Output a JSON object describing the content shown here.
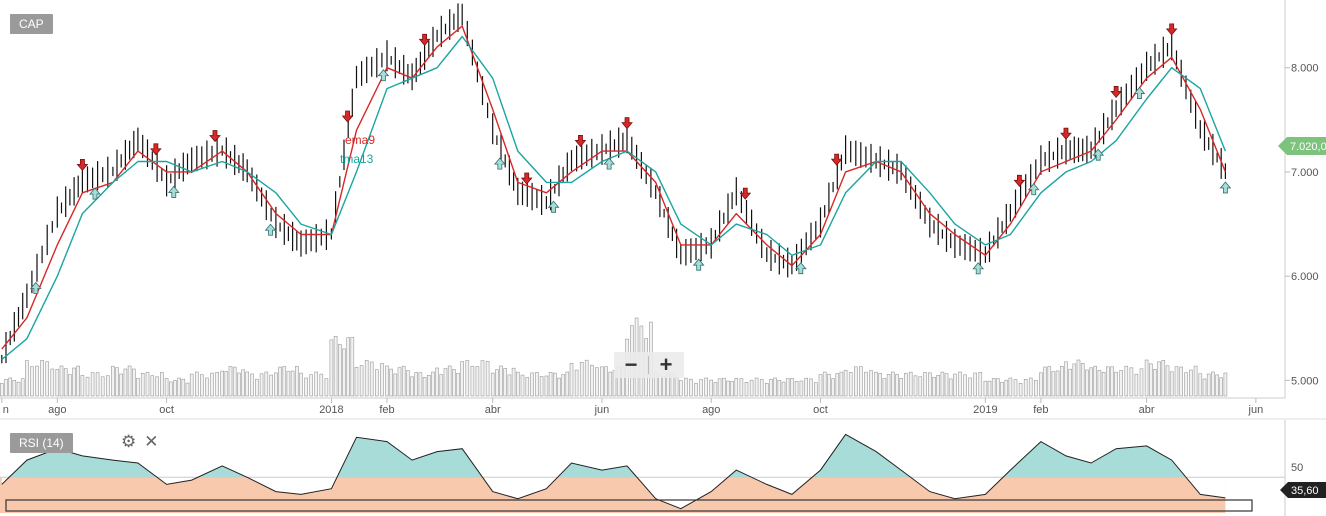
{
  "symbol": "CAP",
  "indicators": [
    {
      "name": "ema9",
      "color": "#d62828"
    },
    {
      "name": "tma13",
      "color": "#1aa5a0"
    }
  ],
  "price_axis_labels": [
    "8.000",
    "7.000",
    "6.000",
    "5.000"
  ],
  "current_price_label": "7.020,0",
  "time_axis_labels": [
    "n",
    "ago",
    "oct",
    "2018",
    "feb",
    "abr",
    "jun",
    "ago",
    "oct",
    "2019",
    "feb",
    "abr",
    "jun"
  ],
  "zoom": {
    "minus_label": "−",
    "plus_label": "+"
  },
  "rsi": {
    "label": "RSI (14)",
    "level_label": "50",
    "current_value_label": "35,60",
    "settings_icon": "gear-icon",
    "close_icon": "close-icon"
  },
  "colors": {
    "ema": "#d62828",
    "tma": "#1aa5a0",
    "bars": "#111111",
    "volume_fill": "#f2f2f2",
    "volume_stroke": "#9a9a9a",
    "rsi_above": "#a8dcd9",
    "rsi_below": "#f8c9ad",
    "buy_arrow": "#a8dcd9",
    "sell_arrow": "#d62828",
    "price_badge": "#7dc27d",
    "rsi_badge": "#222222"
  },
  "chart_data": {
    "type": "line",
    "title": "CAP",
    "price_series": {
      "name": "CAP",
      "x": [
        "2017-07-01",
        "2017-07-15",
        "2017-08-01",
        "2017-08-15",
        "2017-09-01",
        "2017-09-15",
        "2017-10-01",
        "2017-10-15",
        "2017-11-01",
        "2017-11-15",
        "2017-12-01",
        "2017-12-15",
        "2018-01-01",
        "2018-01-15",
        "2018-02-01",
        "2018-02-15",
        "2018-03-01",
        "2018-03-15",
        "2018-04-01",
        "2018-04-15",
        "2018-05-01",
        "2018-05-15",
        "2018-06-01",
        "2018-06-15",
        "2018-07-01",
        "2018-07-15",
        "2018-08-01",
        "2018-08-15",
        "2018-09-01",
        "2018-09-15",
        "2018-10-01",
        "2018-10-15",
        "2018-11-01",
        "2018-11-15",
        "2018-12-01",
        "2018-12-15",
        "2019-01-01",
        "2019-01-15",
        "2019-02-01",
        "2019-02-15",
        "2019-03-01",
        "2019-03-15",
        "2019-04-01",
        "2019-04-15",
        "2019-05-01",
        "2019-05-15"
      ],
      "values": [
        5.2,
        5.8,
        6.6,
        6.9,
        7.0,
        7.3,
        6.9,
        7.1,
        7.2,
        7.0,
        6.5,
        6.3,
        6.4,
        7.9,
        8.1,
        7.9,
        8.3,
        8.5,
        7.4,
        6.8,
        6.7,
        7.1,
        7.2,
        7.3,
        6.8,
        6.2,
        6.3,
        6.8,
        6.2,
        6.1,
        6.5,
        7.2,
        7.1,
        7.0,
        6.5,
        6.3,
        6.2,
        6.6,
        7.1,
        7.2,
        7.2,
        7.6,
        8.0,
        8.2,
        7.4,
        7.0
      ]
    },
    "series": [
      {
        "name": "ema9",
        "values": [
          5.3,
          5.6,
          6.3,
          6.8,
          6.9,
          7.2,
          7.0,
          7.0,
          7.2,
          7.0,
          6.6,
          6.4,
          6.4,
          7.4,
          8.0,
          7.9,
          8.2,
          8.4,
          7.6,
          6.9,
          6.8,
          7.0,
          7.2,
          7.2,
          6.9,
          6.3,
          6.3,
          6.6,
          6.3,
          6.1,
          6.4,
          7.0,
          7.1,
          7.0,
          6.6,
          6.4,
          6.2,
          6.5,
          7.0,
          7.1,
          7.2,
          7.5,
          7.9,
          8.1,
          7.6,
          7.0
        ]
      },
      {
        "name": "tma13",
        "values": [
          5.2,
          5.4,
          6.0,
          6.6,
          6.9,
          7.1,
          7.1,
          7.0,
          7.1,
          7.0,
          6.8,
          6.5,
          6.4,
          7.0,
          7.8,
          7.9,
          8.0,
          8.3,
          7.9,
          7.2,
          6.9,
          6.9,
          7.1,
          7.2,
          7.0,
          6.5,
          6.3,
          6.5,
          6.4,
          6.2,
          6.3,
          6.8,
          7.1,
          7.1,
          6.8,
          6.5,
          6.3,
          6.4,
          6.8,
          7.0,
          7.1,
          7.3,
          7.7,
          8.0,
          7.8,
          7.2
        ]
      }
    ],
    "volume": [
      0.3,
      0.6,
      0.5,
      0.4,
      0.5,
      0.4,
      0.3,
      0.4,
      0.5,
      0.4,
      0.5,
      0.4,
      1.0,
      0.6,
      0.5,
      0.4,
      0.5,
      0.6,
      0.5,
      0.4,
      0.4,
      0.6,
      0.5,
      1.3,
      0.4,
      0.3,
      0.3,
      0.3,
      0.3,
      0.3,
      0.4,
      0.5,
      0.4,
      0.4,
      0.4,
      0.4,
      0.3,
      0.3,
      0.5,
      0.6,
      0.5,
      0.5,
      0.6,
      0.5,
      0.4,
      0.4
    ],
    "rsi": [
      45,
      62,
      70,
      65,
      62,
      60,
      45,
      48,
      58,
      50,
      40,
      38,
      42,
      78,
      75,
      62,
      68,
      70,
      40,
      35,
      42,
      60,
      55,
      58,
      35,
      28,
      40,
      55,
      45,
      38,
      55,
      80,
      68,
      55,
      40,
      35,
      38,
      55,
      75,
      65,
      60,
      70,
      72,
      62,
      38,
      35.6
    ],
    "signals": [
      {
        "x": "2017-07-20",
        "type": "buy"
      },
      {
        "x": "2017-08-15",
        "type": "sell"
      },
      {
        "x": "2017-08-22",
        "type": "buy"
      },
      {
        "x": "2017-09-25",
        "type": "sell"
      },
      {
        "x": "2017-10-05",
        "type": "buy"
      },
      {
        "x": "2017-10-28",
        "type": "sell"
      },
      {
        "x": "2017-11-28",
        "type": "buy"
      },
      {
        "x": "2018-01-10",
        "type": "sell"
      },
      {
        "x": "2018-01-30",
        "type": "buy"
      },
      {
        "x": "2018-02-22",
        "type": "sell"
      },
      {
        "x": "2018-04-05",
        "type": "buy"
      },
      {
        "x": "2018-04-20",
        "type": "sell"
      },
      {
        "x": "2018-05-05",
        "type": "buy"
      },
      {
        "x": "2018-05-20",
        "type": "sell"
      },
      {
        "x": "2018-06-05",
        "type": "buy"
      },
      {
        "x": "2018-06-15",
        "type": "sell"
      },
      {
        "x": "2018-07-25",
        "type": "buy"
      },
      {
        "x": "2018-08-20",
        "type": "sell"
      },
      {
        "x": "2018-09-20",
        "type": "buy"
      },
      {
        "x": "2018-10-10",
        "type": "sell"
      },
      {
        "x": "2018-12-28",
        "type": "buy"
      },
      {
        "x": "2019-01-20",
        "type": "sell"
      },
      {
        "x": "2019-01-28",
        "type": "buy"
      },
      {
        "x": "2019-02-15",
        "type": "sell"
      },
      {
        "x": "2019-03-05",
        "type": "buy"
      },
      {
        "x": "2019-03-15",
        "type": "sell"
      },
      {
        "x": "2019-03-28",
        "type": "buy"
      },
      {
        "x": "2019-04-15",
        "type": "sell"
      },
      {
        "x": "2019-05-15",
        "type": "buy"
      }
    ],
    "ylim": [
      4.85,
      8.65
    ],
    "xlim": [
      "2017-06-30",
      "2019-06-10"
    ],
    "rsi_level": 50,
    "grid": false,
    "xlabel": "",
    "ylabel": ""
  }
}
